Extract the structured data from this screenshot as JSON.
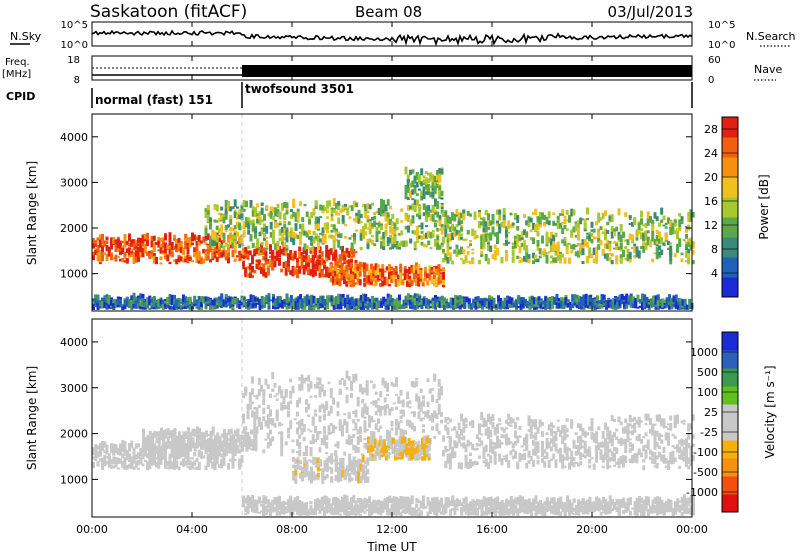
{
  "header": {
    "station": "Saskatoon (fitACF)",
    "beam": "Beam 08",
    "date": "03/Jul/2013"
  },
  "strips": {
    "nsky_label": "N.Sky",
    "nsky_ticks": [
      "10^5",
      "10^0"
    ],
    "nsearch_label": "N.Search",
    "nsearch_ticks": [
      "10^5",
      "10^0"
    ],
    "freq_label_1": "Freq.",
    "freq_label_2": "[MHz]",
    "freq_ticks": [
      "18",
      "8"
    ],
    "nave_label": "Nave",
    "nave_ticks": [
      "60",
      "0"
    ],
    "cpid_label": "CPID",
    "cpid_segments": [
      {
        "name": "normal (fast) 151",
        "start_hour": 0,
        "end_hour": 6
      },
      {
        "name": "twofsound 3501",
        "start_hour": 6,
        "end_hour": 24
      }
    ]
  },
  "chart_data": [
    {
      "type": "heatmap",
      "panel": "power",
      "ylabel": "Slant Range [km]",
      "xlabel": "Time UT",
      "ylim": [
        180,
        4500
      ],
      "yticks": [
        "1000",
        "2000",
        "3000",
        "4000"
      ],
      "xlim": [
        0,
        24
      ],
      "xticks": [
        "00:00",
        "04:00",
        "08:00",
        "12:00",
        "16:00",
        "20:00",
        "00:00"
      ],
      "colorbar": {
        "label": "Power [dB]",
        "ticks": [
          "4",
          "8",
          "12",
          "16",
          "20",
          "24",
          "28"
        ],
        "range": [
          0,
          30
        ],
        "colors": [
          "#1a2bd6",
          "#2060b8",
          "#3a8a7a",
          "#5aa848",
          "#a8c830",
          "#f0c020",
          "#f59010",
          "#f06010",
          "#e02010"
        ]
      },
      "echo_bands": [
        {
          "start_hour": 0.0,
          "end_hour": 6.0,
          "range_km": [
            1200,
            1750
          ],
          "level": "high",
          "value_db": 26
        },
        {
          "start_hour": 6.0,
          "end_hour": 10.5,
          "range_km": [
            900,
            1500
          ],
          "level": "high",
          "value_db": 28
        },
        {
          "start_hour": 9.5,
          "end_hour": 14.0,
          "range_km": [
            700,
            1100
          ],
          "level": "high",
          "value_db": 24
        },
        {
          "start_hour": 4.5,
          "end_hour": 14.0,
          "range_km": [
            1500,
            2500
          ],
          "level": "medium",
          "value_db": 14
        },
        {
          "start_hour": 12.5,
          "end_hour": 14.0,
          "range_km": [
            2600,
            3200
          ],
          "level": "medium",
          "value_db": 12
        },
        {
          "start_hour": 14.0,
          "end_hour": 24.0,
          "range_km": [
            1200,
            2300
          ],
          "level": "medium",
          "value_db": 14
        },
        {
          "start_hour": 0.0,
          "end_hour": 24.0,
          "range_km": [
            200,
            400
          ],
          "level": "low",
          "value_db": 6
        }
      ]
    },
    {
      "type": "heatmap",
      "panel": "velocity",
      "ylabel": "Slant Range [km]",
      "xlabel": "Time UT",
      "ylim": [
        180,
        4500
      ],
      "yticks": [
        "1000",
        "2000",
        "3000",
        "4000"
      ],
      "xlim": [
        0,
        24
      ],
      "xticks": [
        "00:00",
        "04:00",
        "08:00",
        "12:00",
        "16:00",
        "20:00",
        "00:00"
      ],
      "colorbar": {
        "label": "Velocity [m s⁻¹]",
        "ticks": [
          "1000",
          "500",
          "100",
          "25",
          "-25",
          "-100",
          "-500",
          "-1000"
        ],
        "range": [
          -1200,
          1200
        ],
        "colors": [
          "#e01010",
          "#f05010",
          "#f59010",
          "#f5b010",
          "#c8c8c8",
          "#c8c8c8",
          "#60c020",
          "#3a9a50",
          "#2a60b8",
          "#1a2bd6"
        ]
      },
      "echo_bands": [
        {
          "start_hour": 0.0,
          "end_hour": 6.0,
          "range_km": [
            1200,
            1700
          ],
          "level": "ground",
          "value_ms": 0
        },
        {
          "start_hour": 2.0,
          "end_hour": 6.5,
          "range_km": [
            1600,
            2000
          ],
          "level": "positive",
          "value_ms": 60
        },
        {
          "start_hour": 6.0,
          "end_hour": 14.0,
          "range_km": [
            1500,
            3200
          ],
          "level": "ground",
          "value_ms": 0
        },
        {
          "start_hour": 8.0,
          "end_hour": 11.0,
          "range_km": [
            900,
            1400
          ],
          "level": "negative",
          "value_ms": -180
        },
        {
          "start_hour": 11.0,
          "end_hour": 13.5,
          "range_km": [
            1400,
            1800
          ],
          "level": "negative",
          "value_ms": -250
        },
        {
          "start_hour": 14.0,
          "end_hour": 24.0,
          "range_km": [
            1200,
            2300
          ],
          "level": "ground",
          "value_ms": 0
        },
        {
          "start_hour": 6.0,
          "end_hour": 24.0,
          "range_km": [
            200,
            500
          ],
          "level": "weak",
          "value_ms": -40
        }
      ]
    }
  ]
}
